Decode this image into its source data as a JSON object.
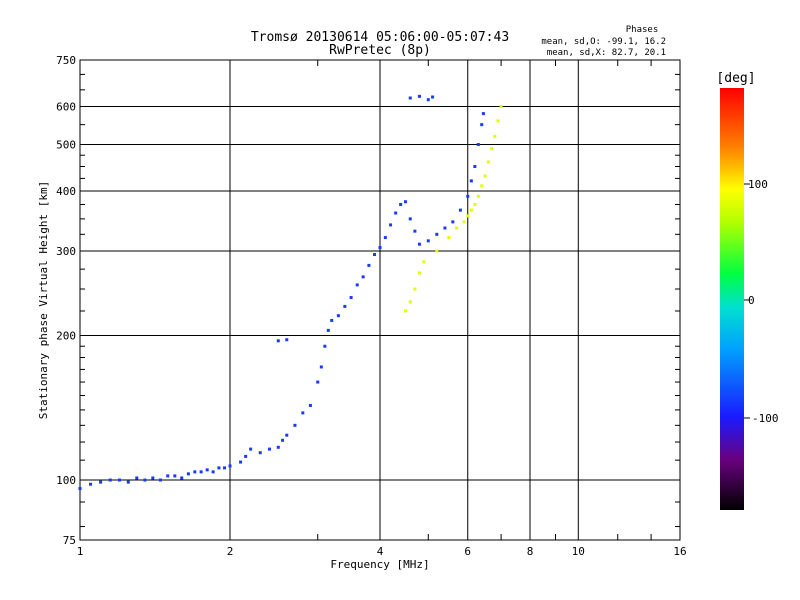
{
  "chart_data": {
    "type": "scatter",
    "title": "Tromsø 20130614 05:06:00-05:07:43",
    "subtitle": "RwPretec (8p)",
    "xlabel": "Frequency [MHz]",
    "ylabel": "Stationary phase Virtual Height [km]",
    "x_scale": "log",
    "y_scale": "log",
    "xlim": [
      1,
      16
    ],
    "ylim": [
      75,
      750
    ],
    "x_ticks": [
      "1",
      "2",
      "4",
      "6",
      "8",
      "10",
      "16"
    ],
    "y_ticks": [
      "75",
      "100",
      "200",
      "300",
      "400",
      "500",
      "600",
      "750"
    ],
    "grid": true,
    "phase_legend": {
      "title": "Phases",
      "line_o": "mean, sd,O: -99.1, 16.2",
      "line_x": "mean, sd,X:  82.7, 20.1"
    },
    "colorbar": {
      "label": "[deg]",
      "ticks": [
        "100",
        "0",
        "-100"
      ],
      "range": [
        -180,
        180
      ]
    },
    "series": [
      {
        "mode": "O",
        "phase": -99.1,
        "points": [
          [
            1.0,
            96
          ],
          [
            1.05,
            98
          ],
          [
            1.1,
            99
          ],
          [
            1.15,
            100
          ],
          [
            1.2,
            100
          ],
          [
            1.25,
            99
          ],
          [
            1.3,
            101
          ],
          [
            1.35,
            100
          ],
          [
            1.4,
            101
          ],
          [
            1.45,
            100
          ],
          [
            1.5,
            102
          ],
          [
            1.55,
            102
          ],
          [
            1.6,
            101
          ],
          [
            1.65,
            103
          ],
          [
            1.7,
            104
          ],
          [
            1.75,
            104
          ],
          [
            1.8,
            105
          ],
          [
            1.85,
            104
          ],
          [
            1.9,
            106
          ],
          [
            1.95,
            106
          ],
          [
            2.0,
            107
          ],
          [
            2.1,
            109
          ],
          [
            2.15,
            112
          ],
          [
            2.2,
            116
          ],
          [
            2.3,
            114
          ],
          [
            2.4,
            116
          ],
          [
            2.5,
            117
          ],
          [
            2.55,
            121
          ],
          [
            2.6,
            124
          ],
          [
            2.7,
            130
          ],
          [
            2.8,
            138
          ],
          [
            2.9,
            143
          ],
          [
            3.0,
            160
          ],
          [
            3.05,
            172
          ],
          [
            3.1,
            190
          ],
          [
            3.15,
            205
          ],
          [
            3.2,
            215
          ],
          [
            3.3,
            220
          ],
          [
            3.4,
            230
          ],
          [
            3.5,
            240
          ],
          [
            3.6,
            255
          ],
          [
            3.7,
            265
          ],
          [
            3.8,
            280
          ],
          [
            3.9,
            295
          ],
          [
            4.0,
            305
          ],
          [
            4.1,
            320
          ],
          [
            4.2,
            340
          ],
          [
            4.3,
            360
          ],
          [
            4.4,
            375
          ],
          [
            4.5,
            380
          ],
          [
            4.6,
            350
          ],
          [
            4.7,
            330
          ],
          [
            4.8,
            310
          ],
          [
            5.0,
            315
          ],
          [
            5.2,
            325
          ],
          [
            5.4,
            335
          ],
          [
            5.6,
            345
          ],
          [
            5.8,
            365
          ],
          [
            6.0,
            390
          ],
          [
            6.1,
            420
          ],
          [
            6.2,
            450
          ],
          [
            6.3,
            500
          ],
          [
            6.4,
            550
          ],
          [
            6.45,
            580
          ],
          [
            2.5,
            195
          ],
          [
            2.6,
            196
          ],
          [
            4.6,
            625
          ],
          [
            4.8,
            630
          ],
          [
            5.0,
            620
          ],
          [
            5.1,
            628
          ]
        ]
      },
      {
        "mode": "X",
        "phase": 82.7,
        "points": [
          [
            4.5,
            225
          ],
          [
            4.6,
            235
          ],
          [
            4.7,
            250
          ],
          [
            4.8,
            270
          ],
          [
            4.9,
            285
          ],
          [
            5.2,
            300
          ],
          [
            5.5,
            320
          ],
          [
            5.7,
            335
          ],
          [
            5.9,
            345
          ],
          [
            6.0,
            355
          ],
          [
            6.1,
            365
          ],
          [
            6.2,
            375
          ],
          [
            6.3,
            390
          ],
          [
            6.4,
            410
          ],
          [
            6.5,
            430
          ],
          [
            6.6,
            460
          ],
          [
            6.7,
            490
          ],
          [
            6.8,
            520
          ],
          [
            6.9,
            560
          ],
          [
            7.0,
            600
          ]
        ]
      }
    ]
  }
}
